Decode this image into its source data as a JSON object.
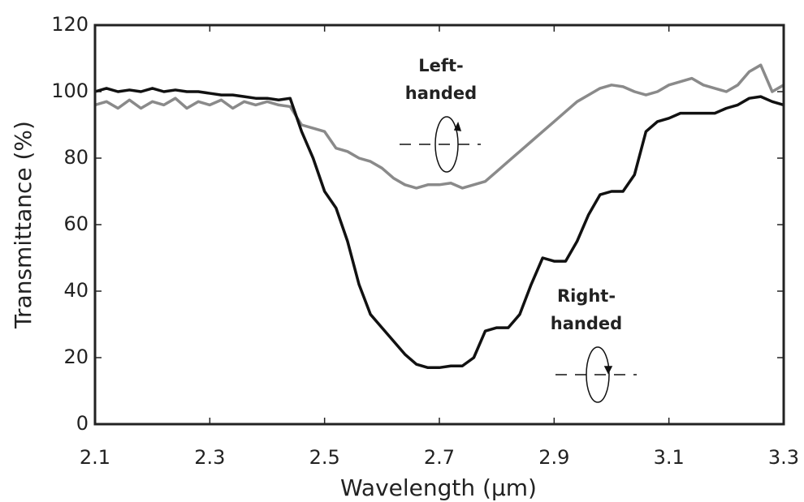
{
  "chart_data": {
    "type": "line",
    "x_label": "Wavelength (μm)",
    "y_label": "Transmittance (%)",
    "x": [
      2.1,
      2.12,
      2.14,
      2.16,
      2.18,
      2.2,
      2.22,
      2.24,
      2.26,
      2.28,
      2.3,
      2.32,
      2.34,
      2.36,
      2.38,
      2.4,
      2.42,
      2.44,
      2.46,
      2.48,
      2.5,
      2.52,
      2.54,
      2.56,
      2.58,
      2.6,
      2.62,
      2.64,
      2.66,
      2.68,
      2.7,
      2.72,
      2.74,
      2.76,
      2.78,
      2.8,
      2.82,
      2.84,
      2.86,
      2.88,
      2.9,
      2.92,
      2.94,
      2.96,
      2.98,
      3.0,
      3.02,
      3.04,
      3.06,
      3.08,
      3.1,
      3.12,
      3.14,
      3.16,
      3.18,
      3.2,
      3.22,
      3.24,
      3.26,
      3.28,
      3.3
    ],
    "series": [
      {
        "color": "#8a8a8a",
        "values": [
          96,
          97,
          95,
          97.5,
          95,
          97,
          96,
          98,
          95,
          97,
          96,
          97.5,
          95,
          97,
          96,
          97,
          96,
          95.5,
          90,
          89,
          88,
          83,
          82,
          80,
          79,
          77,
          74,
          72,
          71,
          72,
          72,
          72.5,
          71,
          72,
          73,
          76,
          79,
          82,
          85,
          88,
          91,
          94,
          97,
          99,
          101,
          102,
          101.5,
          100,
          99,
          100,
          102,
          103,
          104,
          102,
          101,
          100,
          102,
          106,
          108,
          100,
          102
        ]
      },
      {
        "color": "#111111",
        "values": [
          100,
          101,
          100,
          100.5,
          100,
          101,
          100,
          100.5,
          100,
          100,
          99.5,
          99,
          99,
          98.5,
          98,
          98,
          97.5,
          98,
          88,
          80,
          70,
          65,
          55,
          42,
          33,
          29,
          25,
          21,
          18,
          17,
          17,
          17.5,
          17.5,
          20,
          28,
          29,
          29,
          33,
          42,
          50,
          49,
          49,
          55,
          63,
          69,
          70,
          70,
          75,
          88,
          91,
          92,
          93.5,
          93.5,
          93.5,
          93.5,
          95,
          96,
          98,
          98.5,
          97,
          96
        ]
      }
    ],
    "annotations": [
      {
        "lines": [
          "Left-",
          "handed"
        ]
      },
      {
        "lines": [
          "Right-",
          "handed"
        ]
      }
    ],
    "xlim": [
      2.1,
      3.3
    ],
    "xticks": [
      2.1,
      2.3,
      2.5,
      2.7,
      2.9,
      3.1,
      3.3
    ],
    "ylim": [
      0,
      120
    ],
    "yticks": [
      0,
      20,
      40,
      60,
      80,
      100,
      120
    ],
    "grid": false
  }
}
